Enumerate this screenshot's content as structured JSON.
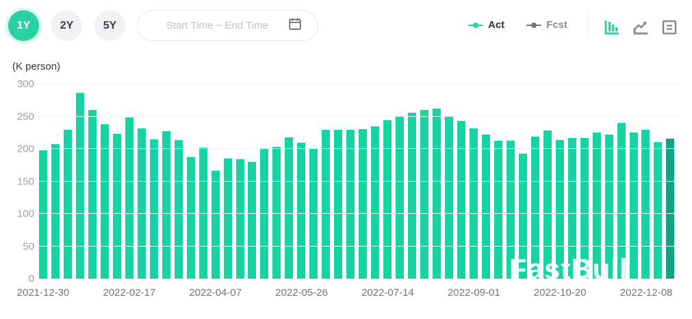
{
  "header": {
    "range_buttons": [
      {
        "label": "1Y",
        "active": true
      },
      {
        "label": "2Y",
        "active": false
      },
      {
        "label": "5Y",
        "active": false
      }
    ],
    "date_input": {
      "placeholder": "Start Time ~ End Time",
      "icon": "calendar-icon"
    },
    "legend": [
      {
        "label": "Act",
        "color": "#2bd1a3"
      },
      {
        "label": "Fcst",
        "color": "#77777f"
      }
    ],
    "view_icons": [
      {
        "name": "bar-chart-icon",
        "active": true
      },
      {
        "name": "line-chart-icon",
        "active": false
      },
      {
        "name": "data-table-icon",
        "active": false
      }
    ]
  },
  "chart": {
    "unit_label": "(K person)",
    "watermark": "FastBull"
  },
  "colors": {
    "bar": "#15d3a3",
    "bar_last": "#0ca583",
    "accent": "#2bd1a3",
    "grid": "#f0f0f3"
  },
  "chart_data": {
    "type": "bar",
    "title": "",
    "xlabel": "",
    "ylabel": "(K person)",
    "ylim": [
      0,
      300
    ],
    "yticks": [
      0,
      50,
      100,
      150,
      200,
      250,
      300
    ],
    "grid": true,
    "legend_position": "top-right",
    "x_tick_labels": [
      "2021-12-30",
      "2022-02-17",
      "2022-04-07",
      "2022-05-26",
      "2022-07-14",
      "2022-09-01",
      "2022-10-20",
      "2022-12-08"
    ],
    "x_tick_bar_interval": 7,
    "series": [
      {
        "name": "Act",
        "color": "#15d3a3",
        "values": [
          198,
          207,
          230,
          286,
          260,
          238,
          223,
          248,
          232,
          215,
          227,
          214,
          187,
          202,
          166,
          185,
          184,
          180,
          200,
          203,
          218,
          210,
          200,
          229,
          229,
          229,
          231,
          235,
          244,
          251,
          256,
          260,
          262,
          250,
          243,
          232,
          222,
          213,
          213,
          193,
          219,
          228,
          214,
          217,
          217,
          225,
          222,
          240,
          225,
          230,
          211,
          216
        ]
      }
    ],
    "highlight_last_bar_color": "#0ca583"
  }
}
